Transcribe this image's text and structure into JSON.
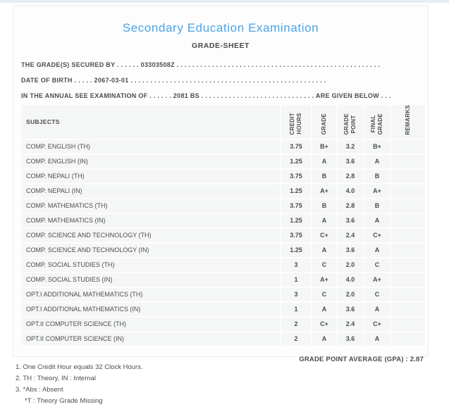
{
  "colors": {
    "accent_title": "#47a4e9",
    "text": "#4c4c4c",
    "cell_background": "#f5f6f6",
    "card_border": "#ececec",
    "top_strip": "#e6edf3"
  },
  "page": {
    "title": "Secondary Education Examination",
    "subtitle": "GRADE-SHEET"
  },
  "info_lines": [
    "THE GRADE(S) SECURED BY . . . . . . 03303508Z . . . . . . . . . . . . . . . . . . . . . . . . . . . . . . . . . . . . . . . . . . . . . . . . . . . .",
    "DATE OF BIRTH . . . . . 2067-03-01 . . . . . . . . . . . . . . . . . . . . . . . . . . . . . . . . . . . . . . . . . . . . . . . . . .",
    "IN THE ANNUAL SEE EXAMINATION OF . . . . . . 2081 BS . . . . . . . . . . . . . . . . . . . . . . . . . . . . . ARE GIVEN BELOW . . ."
  ],
  "student": {
    "symbol_number": "03303508Z",
    "date_of_birth": "2067-03-01",
    "examination_year": "2081 BS"
  },
  "table": {
    "headers": {
      "subjects": "SUBJECTS",
      "credit_hours": "CREDIT\nHOURS",
      "grade": "GRADE",
      "grade_point": "GRADE\nPOINT",
      "final_grade": "FINAL\nGRADE",
      "remarks": "REMARKS"
    },
    "rows": [
      {
        "subject": "COMP. ENGLISH (TH)",
        "credit_hours": "3.75",
        "grade": "B+",
        "grade_point": "3.2",
        "final_grade": "B+",
        "remarks": ""
      },
      {
        "subject": "COMP. ENGLISH (IN)",
        "credit_hours": "1.25",
        "grade": "A",
        "grade_point": "3.6",
        "final_grade": "A",
        "remarks": ""
      },
      {
        "subject": "COMP. NEPALI (TH)",
        "credit_hours": "3.75",
        "grade": "B",
        "grade_point": "2.8",
        "final_grade": "B",
        "remarks": ""
      },
      {
        "subject": "COMP. NEPALI (IN)",
        "credit_hours": "1.25",
        "grade": "A+",
        "grade_point": "4.0",
        "final_grade": "A+",
        "remarks": ""
      },
      {
        "subject": "COMP. MATHEMATICS (TH)",
        "credit_hours": "3.75",
        "grade": "B",
        "grade_point": "2.8",
        "final_grade": "B",
        "remarks": ""
      },
      {
        "subject": "COMP. MATHEMATICS (IN)",
        "credit_hours": "1.25",
        "grade": "A",
        "grade_point": "3.6",
        "final_grade": "A",
        "remarks": ""
      },
      {
        "subject": "COMP. SCIENCE AND TECHNOLOGY (TH)",
        "credit_hours": "3.75",
        "grade": "C+",
        "grade_point": "2.4",
        "final_grade": "C+",
        "remarks": ""
      },
      {
        "subject": "COMP. SCIENCE AND TECHNOLOGY (IN)",
        "credit_hours": "1.25",
        "grade": "A",
        "grade_point": "3.6",
        "final_grade": "A",
        "remarks": ""
      },
      {
        "subject": "COMP. SOCIAL STUDIES (TH)",
        "credit_hours": "3",
        "grade": "C",
        "grade_point": "2.0",
        "final_grade": "C",
        "remarks": ""
      },
      {
        "subject": "COMP. SOCIAL STUDIES (IN)",
        "credit_hours": "1",
        "grade": "A+",
        "grade_point": "4.0",
        "final_grade": "A+",
        "remarks": ""
      },
      {
        "subject": "OPT.I ADDITIONAL MATHEMATICS (TH)",
        "credit_hours": "3",
        "grade": "C",
        "grade_point": "2.0",
        "final_grade": "C",
        "remarks": ""
      },
      {
        "subject": "OPT.I ADDITIONAL MATHEMATICS (IN)",
        "credit_hours": "1",
        "grade": "A",
        "grade_point": "3.6",
        "final_grade": "A",
        "remarks": ""
      },
      {
        "subject": "OPT.II COMPUTER SCIENCE (TH)",
        "credit_hours": "2",
        "grade": "C+",
        "grade_point": "2.4",
        "final_grade": "C+",
        "remarks": ""
      },
      {
        "subject": "OPT.II COMPUTER SCIENCE (IN)",
        "credit_hours": "2",
        "grade": "A",
        "grade_point": "3.6",
        "final_grade": "A",
        "remarks": ""
      }
    ]
  },
  "summary": {
    "gpa_label": "GRADE POINT AVERAGE (GPA) :",
    "gpa_value": "2.87"
  },
  "notes": [
    "1. One Credit Hour equals 32 Clock Hours.",
    "2. TH : Theory, IN : Internal",
    "3. *Abs : Absent",
    "*T : Theory Grade Missing"
  ]
}
